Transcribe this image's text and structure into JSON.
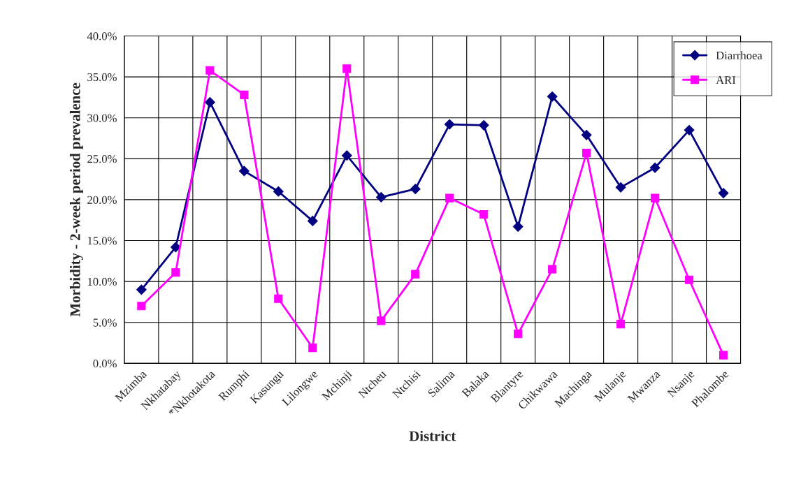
{
  "chart_data": {
    "type": "line",
    "xlabel": "District",
    "ylabel": "Morbidity - 2-week period prevalence",
    "categories": [
      "Mzimba",
      "Nkhatabay",
      "*Nkhotakota",
      "Rumphi",
      "Kasungu",
      "Lilongwe",
      "Mchinji",
      "Ntcheu",
      "Ntchisi",
      "Salima",
      "Balaka",
      "Blantyre",
      "Chikwawa",
      "Machinga",
      "Mulanje",
      "Mwanza",
      "Nsanje",
      "Phalombe"
    ],
    "series": [
      {
        "name": "Diarrhoea",
        "color": "#000080",
        "marker": "diamond",
        "values": [
          9.0,
          14.2,
          31.9,
          23.5,
          21.0,
          17.4,
          25.4,
          20.3,
          21.3,
          29.2,
          29.1,
          16.7,
          32.6,
          27.9,
          21.5,
          23.9,
          28.5,
          20.8
        ]
      },
      {
        "name": "ARI",
        "color": "#ff00ff",
        "marker": "square",
        "values": [
          7.0,
          11.1,
          35.8,
          32.8,
          7.9,
          1.9,
          36.0,
          5.2,
          10.9,
          20.2,
          18.2,
          3.6,
          11.5,
          25.7,
          4.8,
          20.2,
          10.2,
          1.0
        ]
      }
    ],
    "ylim": [
      0,
      40
    ],
    "yticks": [
      {
        "value": 0,
        "label": "0.0%"
      },
      {
        "value": 5,
        "label": "5.0%"
      },
      {
        "value": 10,
        "label": "10.0%"
      },
      {
        "value": 15,
        "label": "15.0%"
      },
      {
        "value": 20,
        "label": "20.0%"
      },
      {
        "value": 25,
        "label": "25.0%"
      },
      {
        "value": 30,
        "label": "30.0%"
      },
      {
        "value": 35,
        "label": "35.0%"
      },
      {
        "value": 40,
        "label": "40.0%"
      }
    ],
    "grid": true,
    "legend": "top right",
    "line_style": "solid"
  }
}
